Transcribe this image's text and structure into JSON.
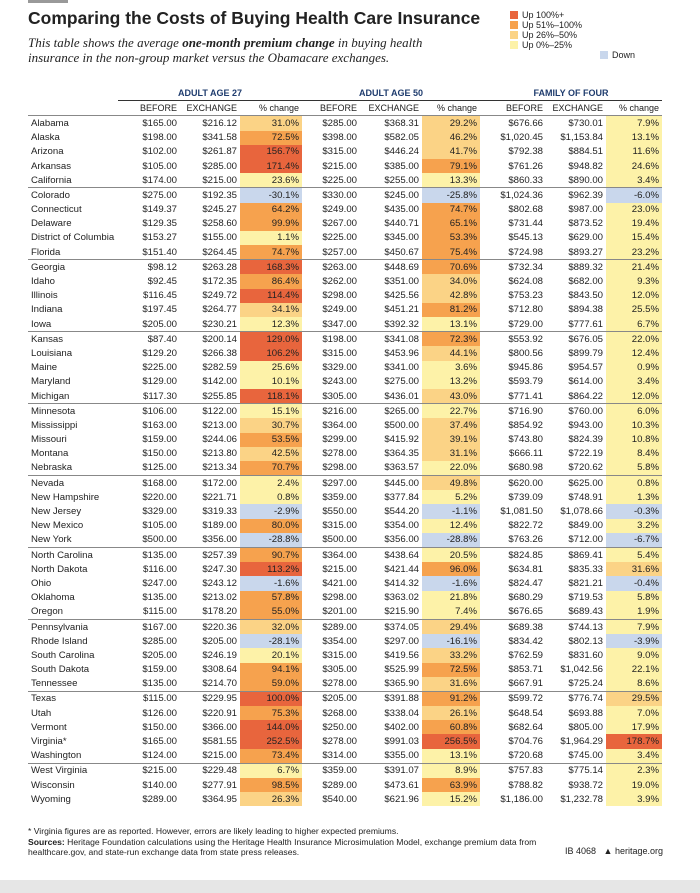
{
  "header": {
    "title": "Comparing the Costs of Buying Health Care Insurance",
    "subtitle": [
      "This table shows the average ",
      "one-month premium change",
      " in buying health insurance in the non-group market versus the Obamacare exchanges."
    ]
  },
  "legend": {
    "items": [
      {
        "label": "Up 100%+",
        "color": "#e8653d"
      },
      {
        "label": "Up 51%–100%",
        "color": "#f6a24e"
      },
      {
        "label": "Up 26%–50%",
        "color": "#fbd386"
      },
      {
        "label": "Up 0%–25%",
        "color": "#fdf2a8"
      },
      {
        "label": "Down",
        "color": "#c9d7ec"
      }
    ]
  },
  "table": {
    "groups": [
      "ADULT AGE 27",
      "ADULT AGE 50",
      "FAMILY OF FOUR"
    ],
    "columns": [
      "BEFORE",
      "EXCHANGE",
      "% change"
    ],
    "rows": [
      [
        "Alabama",
        "$165.00",
        "$216.12",
        "31.0%",
        "$285.00",
        "$368.31",
        "29.2%",
        "$676.66",
        "$730.01",
        "7.9%"
      ],
      [
        "Alaska",
        "$198.00",
        "$341.58",
        "72.5%",
        "$398.00",
        "$582.05",
        "46.2%",
        "$1,020.45",
        "$1,153.84",
        "13.1%"
      ],
      [
        "Arizona",
        "$102.00",
        "$261.87",
        "156.7%",
        "$315.00",
        "$446.24",
        "41.7%",
        "$792.38",
        "$884.51",
        "11.6%"
      ],
      [
        "Arkansas",
        "$105.00",
        "$285.00",
        "171.4%",
        "$215.00",
        "$385.00",
        "79.1%",
        "$761.26",
        "$948.82",
        "24.6%"
      ],
      [
        "California",
        "$174.00",
        "$215.00",
        "23.6%",
        "$225.00",
        "$255.00",
        "13.3%",
        "$860.33",
        "$890.00",
        "3.4%"
      ],
      [
        "Colorado",
        "$275.00",
        "$192.35",
        "-30.1%",
        "$330.00",
        "$245.00",
        "-25.8%",
        "$1,024.36",
        "$962.39",
        "-6.0%"
      ],
      [
        "Connecticut",
        "$149.37",
        "$245.27",
        "64.2%",
        "$249.00",
        "$435.00",
        "74.7%",
        "$802.68",
        "$987.00",
        "23.0%"
      ],
      [
        "Delaware",
        "$129.35",
        "$258.60",
        "99.9%",
        "$267.00",
        "$440.71",
        "65.1%",
        "$731.44",
        "$873.52",
        "19.4%"
      ],
      [
        "District of Columbia",
        "$153.27",
        "$155.00",
        "1.1%",
        "$225.00",
        "$345.00",
        "53.3%",
        "$545.13",
        "$629.00",
        "15.4%"
      ],
      [
        "Florida",
        "$151.40",
        "$264.45",
        "74.7%",
        "$257.00",
        "$450.67",
        "75.4%",
        "$724.98",
        "$893.27",
        "23.2%"
      ],
      [
        "Georgia",
        "$98.12",
        "$263.28",
        "168.3%",
        "$263.00",
        "$448.69",
        "70.6%",
        "$732.34",
        "$889.32",
        "21.4%"
      ],
      [
        "Idaho",
        "$92.45",
        "$172.35",
        "86.4%",
        "$262.00",
        "$351.00",
        "34.0%",
        "$624.08",
        "$682.00",
        "9.3%"
      ],
      [
        "Illinois",
        "$116.45",
        "$249.72",
        "114.4%",
        "$298.00",
        "$425.56",
        "42.8%",
        "$753.23",
        "$843.50",
        "12.0%"
      ],
      [
        "Indiana",
        "$197.45",
        "$264.77",
        "34.1%",
        "$249.00",
        "$451.21",
        "81.2%",
        "$712.80",
        "$894.38",
        "25.5%"
      ],
      [
        "Iowa",
        "$205.00",
        "$230.21",
        "12.3%",
        "$347.00",
        "$392.32",
        "13.1%",
        "$729.00",
        "$777.61",
        "6.7%"
      ],
      [
        "Kansas",
        "$87.40",
        "$200.14",
        "129.0%",
        "$198.00",
        "$341.08",
        "72.3%",
        "$553.92",
        "$676.05",
        "22.0%"
      ],
      [
        "Louisiana",
        "$129.20",
        "$266.38",
        "106.2%",
        "$315.00",
        "$453.96",
        "44.1%",
        "$800.56",
        "$899.79",
        "12.4%"
      ],
      [
        "Maine",
        "$225.00",
        "$282.59",
        "25.6%",
        "$329.00",
        "$341.00",
        "3.6%",
        "$945.86",
        "$954.57",
        "0.9%"
      ],
      [
        "Maryland",
        "$129.00",
        "$142.00",
        "10.1%",
        "$243.00",
        "$275.00",
        "13.2%",
        "$593.79",
        "$614.00",
        "3.4%"
      ],
      [
        "Michigan",
        "$117.30",
        "$255.85",
        "118.1%",
        "$305.00",
        "$436.01",
        "43.0%",
        "$771.41",
        "$864.22",
        "12.0%"
      ],
      [
        "Minnesota",
        "$106.00",
        "$122.00",
        "15.1%",
        "$216.00",
        "$265.00",
        "22.7%",
        "$716.90",
        "$760.00",
        "6.0%"
      ],
      [
        "Mississippi",
        "$163.00",
        "$213.00",
        "30.7%",
        "$364.00",
        "$500.00",
        "37.4%",
        "$854.92",
        "$943.00",
        "10.3%"
      ],
      [
        "Missouri",
        "$159.00",
        "$244.06",
        "53.5%",
        "$299.00",
        "$415.92",
        "39.1%",
        "$743.80",
        "$824.39",
        "10.8%"
      ],
      [
        "Montana",
        "$150.00",
        "$213.80",
        "42.5%",
        "$278.00",
        "$364.35",
        "31.1%",
        "$666.11",
        "$722.19",
        "8.4%"
      ],
      [
        "Nebraska",
        "$125.00",
        "$213.34",
        "70.7%",
        "$298.00",
        "$363.57",
        "22.0%",
        "$680.98",
        "$720.62",
        "5.8%"
      ],
      [
        "Nevada",
        "$168.00",
        "$172.00",
        "2.4%",
        "$297.00",
        "$445.00",
        "49.8%",
        "$620.00",
        "$625.00",
        "0.8%"
      ],
      [
        "New Hampshire",
        "$220.00",
        "$221.71",
        "0.8%",
        "$359.00",
        "$377.84",
        "5.2%",
        "$739.09",
        "$748.91",
        "1.3%"
      ],
      [
        "New Jersey",
        "$329.00",
        "$319.33",
        "-2.9%",
        "$550.00",
        "$544.20",
        "-1.1%",
        "$1,081.50",
        "$1,078.66",
        "-0.3%"
      ],
      [
        "New Mexico",
        "$105.00",
        "$189.00",
        "80.0%",
        "$315.00",
        "$354.00",
        "12.4%",
        "$822.72",
        "$849.00",
        "3.2%"
      ],
      [
        "New York",
        "$500.00",
        "$356.00",
        "-28.8%",
        "$500.00",
        "$356.00",
        "-28.8%",
        "$763.26",
        "$712.00",
        "-6.7%"
      ],
      [
        "North Carolina",
        "$135.00",
        "$257.39",
        "90.7%",
        "$364.00",
        "$438.64",
        "20.5%",
        "$824.85",
        "$869.41",
        "5.4%"
      ],
      [
        "North Dakota",
        "$116.00",
        "$247.30",
        "113.2%",
        "$215.00",
        "$421.44",
        "96.0%",
        "$634.81",
        "$835.33",
        "31.6%"
      ],
      [
        "Ohio",
        "$247.00",
        "$243.12",
        "-1.6%",
        "$421.00",
        "$414.32",
        "-1.6%",
        "$824.47",
        "$821.21",
        "-0.4%"
      ],
      [
        "Oklahoma",
        "$135.00",
        "$213.02",
        "57.8%",
        "$298.00",
        "$363.02",
        "21.8%",
        "$680.29",
        "$719.53",
        "5.8%"
      ],
      [
        "Oregon",
        "$115.00",
        "$178.20",
        "55.0%",
        "$201.00",
        "$215.90",
        "7.4%",
        "$676.65",
        "$689.43",
        "1.9%"
      ],
      [
        "Pennsylvania",
        "$167.00",
        "$220.36",
        "32.0%",
        "$289.00",
        "$374.05",
        "29.4%",
        "$689.38",
        "$744.13",
        "7.9%"
      ],
      [
        "Rhode Island",
        "$285.00",
        "$205.00",
        "-28.1%",
        "$354.00",
        "$297.00",
        "-16.1%",
        "$834.42",
        "$802.13",
        "-3.9%"
      ],
      [
        "South Carolina",
        "$205.00",
        "$246.19",
        "20.1%",
        "$315.00",
        "$419.56",
        "33.2%",
        "$762.59",
        "$831.60",
        "9.0%"
      ],
      [
        "South Dakota",
        "$159.00",
        "$308.64",
        "94.1%",
        "$305.00",
        "$525.99",
        "72.5%",
        "$853.71",
        "$1,042.56",
        "22.1%"
      ],
      [
        "Tennessee",
        "$135.00",
        "$214.70",
        "59.0%",
        "$278.00",
        "$365.90",
        "31.6%",
        "$667.91",
        "$725.24",
        "8.6%"
      ],
      [
        "Texas",
        "$115.00",
        "$229.95",
        "100.0%",
        "$205.00",
        "$391.88",
        "91.2%",
        "$599.72",
        "$776.74",
        "29.5%"
      ],
      [
        "Utah",
        "$126.00",
        "$220.91",
        "75.3%",
        "$268.00",
        "$338.04",
        "26.1%",
        "$648.54",
        "$693.88",
        "7.0%"
      ],
      [
        "Vermont",
        "$150.00",
        "$366.00",
        "144.0%",
        "$250.00",
        "$402.00",
        "60.8%",
        "$682.64",
        "$805.00",
        "17.9%"
      ],
      [
        "Virginia*",
        "$165.00",
        "$581.55",
        "252.5%",
        "$278.00",
        "$991.03",
        "256.5%",
        "$704.76",
        "$1,964.29",
        "178.7%"
      ],
      [
        "Washington",
        "$124.00",
        "$215.00",
        "73.4%",
        "$314.00",
        "$355.00",
        "13.1%",
        "$720.68",
        "$745.00",
        "3.4%"
      ],
      [
        "West Virginia",
        "$215.00",
        "$229.48",
        "6.7%",
        "$359.00",
        "$391.07",
        "8.9%",
        "$757.83",
        "$775.14",
        "2.3%"
      ],
      [
        "Wisconsin",
        "$140.00",
        "$277.91",
        "98.5%",
        "$289.00",
        "$473.61",
        "63.9%",
        "$788.82",
        "$938.72",
        "19.0%"
      ],
      [
        "Wyoming",
        "$289.00",
        "$364.95",
        "26.3%",
        "$540.00",
        "$621.96",
        "15.2%",
        "$1,186.00",
        "$1,232.78",
        "3.9%"
      ]
    ]
  },
  "footer": {
    "note": "* Virginia figures are as reported. However, errors are likely leading to higher expected premiums.",
    "sources_label": "Sources:",
    "sources": "Heritage Foundation calculations using the Heritage Health Insurance Microsimulation Model, exchange premium data from healthcare.gov, and state-run exchange data from state press releases.",
    "id": "IB 4068",
    "site": "heritage.org"
  }
}
